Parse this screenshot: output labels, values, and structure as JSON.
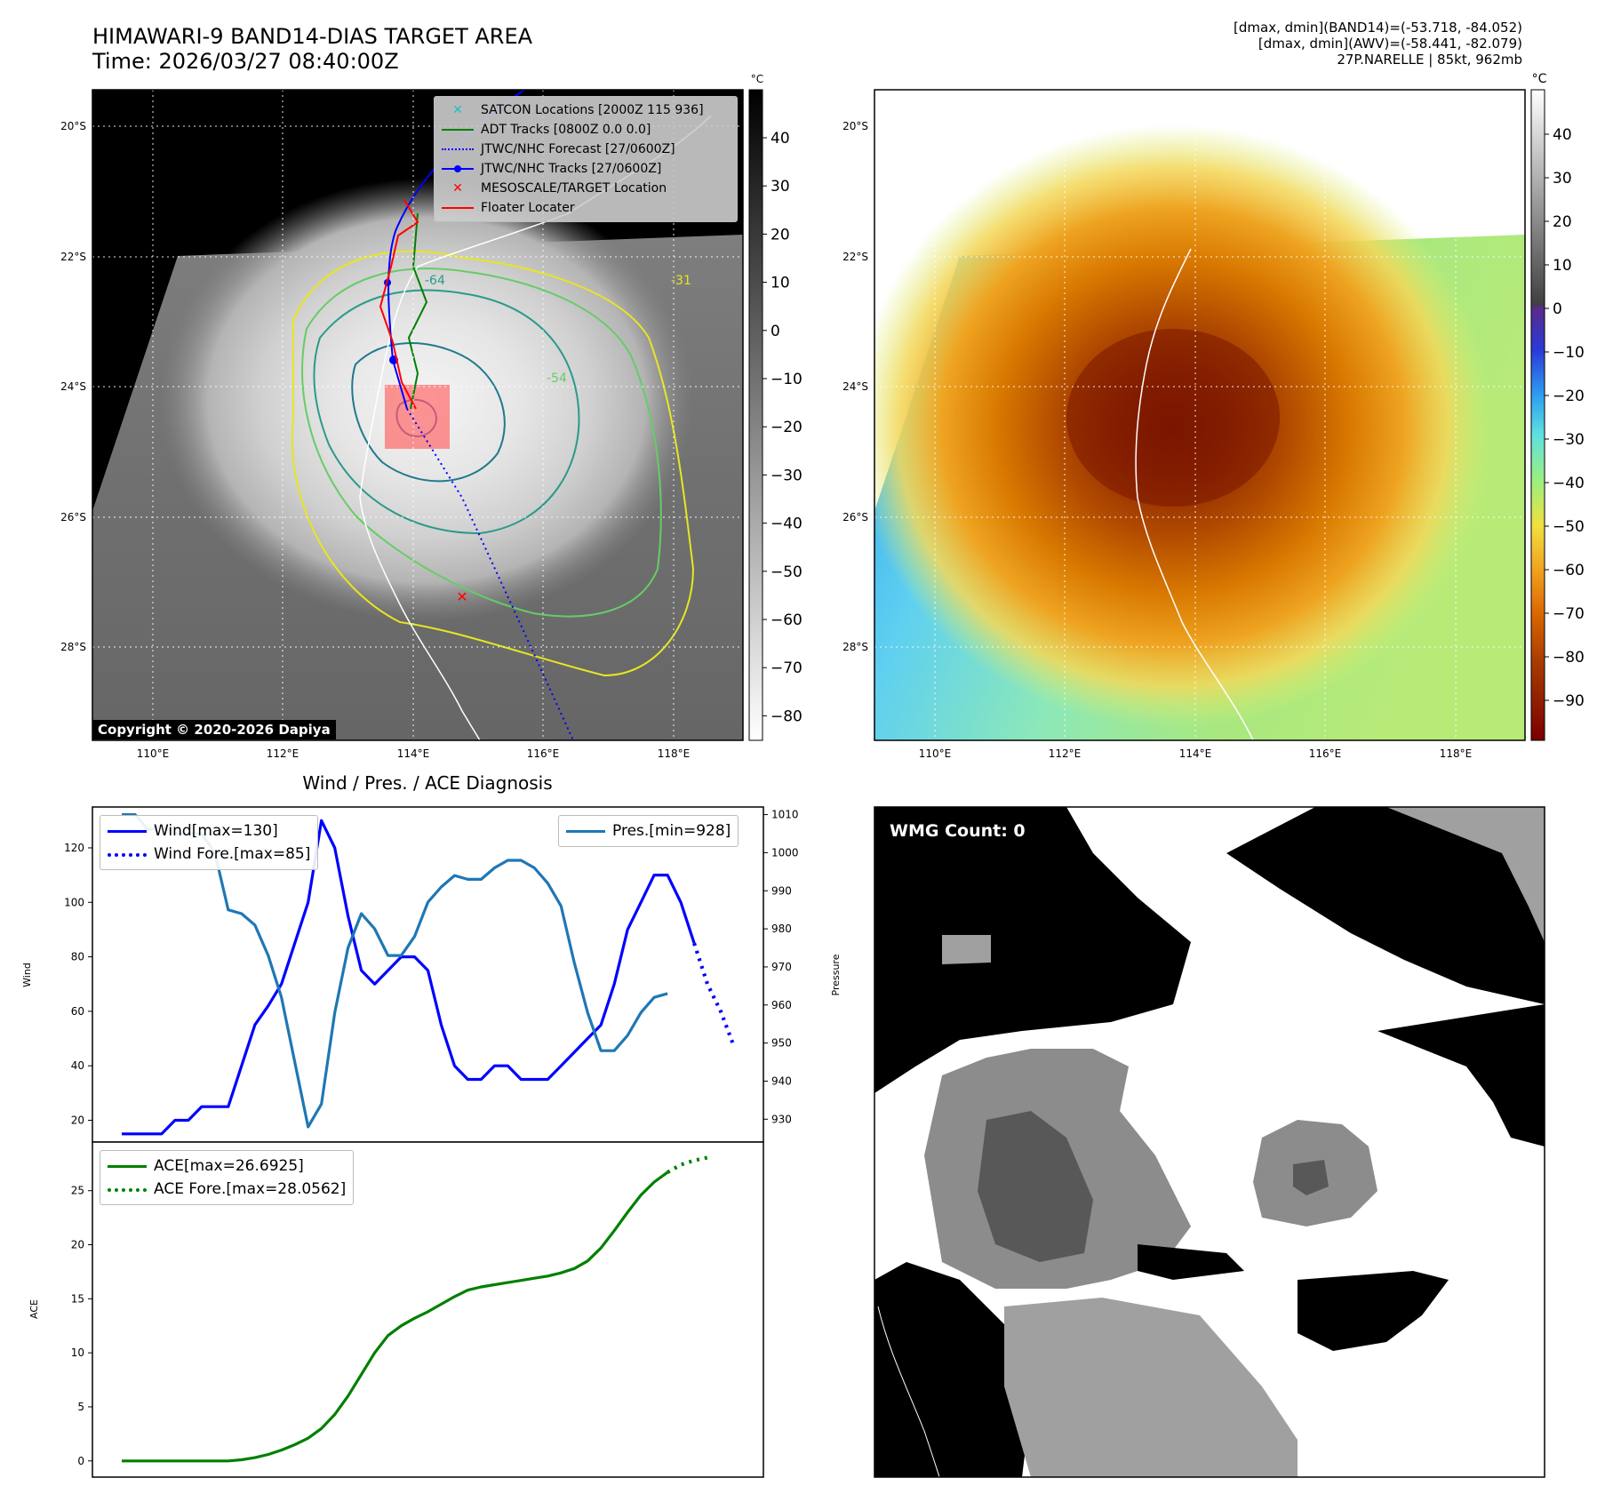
{
  "header": {
    "title_line1": "HIMAWARI-9 BAND14-DIAS TARGET AREA",
    "title_line2": "Time: 2026/03/27 08:40:00Z",
    "right_line1": "[dmax, dmin](BAND14)=(-53.718, -84.052)",
    "right_line2": "[dmax, dmin](AWV)=(-58.441, -82.079)",
    "right_line3": "27P.NARELLE | 85kt, 962mb"
  },
  "map_axes": {
    "lat_labels": [
      "20°S",
      "22°S",
      "24°S",
      "26°S",
      "28°S"
    ],
    "lon_labels": [
      "110°E",
      "112°E",
      "114°E",
      "116°E",
      "118°E"
    ]
  },
  "ir_panel": {
    "legend": [
      {
        "label": "SATCON Locations [2000Z 115 936]",
        "color": "#17becf"
      },
      {
        "label": "ADT Tracks [0800Z 0.0 0.0]",
        "color": "#008000"
      },
      {
        "label": "JTWC/NHC Forecast [27/0600Z]",
        "color": "#0000ff"
      },
      {
        "label": "JTWC/NHC Tracks [27/0600Z]",
        "color": "#0000ff"
      },
      {
        "label": "MESOSCALE/TARGET Location",
        "color": "#ff0000"
      },
      {
        "label": "Floater Locater",
        "color": "#ff0000"
      }
    ],
    "copyright": "Copyright © 2020-2026 Dapiya",
    "contour_labels": [
      "-64",
      "-54",
      "-31"
    ],
    "colorbar_unit": "°C",
    "colorbar_ticks": [
      "40",
      "30",
      "20",
      "10",
      "0",
      "−10",
      "−20",
      "−30",
      "−40",
      "−50",
      "−60",
      "−70",
      "−80"
    ]
  },
  "color_panel": {
    "colorbar_unit": "°C",
    "colorbar_ticks": [
      "40",
      "30",
      "20",
      "10",
      "0",
      "−10",
      "−20",
      "−30",
      "−40",
      "−50",
      "−60",
      "−70",
      "−80",
      "−90"
    ]
  },
  "wmg_panel": {
    "badge": "WMG Count: 0"
  },
  "chart_data": [
    {
      "type": "line",
      "title": "Wind / Pres. / ACE Diagnosis",
      "ylabel": "Wind",
      "y2label": "Pressure",
      "ylim": [
        12,
        135
      ],
      "y2lim": [
        924,
        1012
      ],
      "yticks": [
        20,
        40,
        60,
        80,
        100,
        120
      ],
      "y2ticks": [
        930,
        940,
        950,
        960,
        970,
        980,
        990,
        1000,
        1010
      ],
      "series": [
        {
          "name": "Wind[max=130]",
          "color": "#0000ff",
          "style": "solid",
          "axis": "left",
          "values": [
            15,
            15,
            15,
            15,
            20,
            20,
            25,
            25,
            25,
            40,
            55,
            62,
            70,
            85,
            100,
            130,
            120,
            95,
            75,
            70,
            75,
            80,
            80,
            75,
            55,
            40,
            35,
            35,
            40,
            40,
            35,
            35,
            35,
            40,
            45,
            50,
            55,
            70,
            90,
            100,
            110,
            110,
            100,
            85
          ]
        },
        {
          "name": "Wind Fore.[max=85]",
          "color": "#0000ff",
          "style": "dotted",
          "axis": "left",
          "values": [
            85,
            70,
            60,
            47
          ]
        },
        {
          "name": "Pres.[min=928]",
          "color": "#1f77b4",
          "style": "solid",
          "axis": "right",
          "values": [
            1010,
            1010,
            1006,
            1007,
            1005,
            1005,
            1005,
            1000,
            985,
            984,
            981,
            973,
            962,
            945,
            928,
            934,
            958,
            975,
            984,
            980,
            973,
            973,
            978,
            987,
            991,
            994,
            993,
            993,
            996,
            998,
            998,
            996,
            992,
            986,
            971,
            958,
            948,
            948,
            952,
            958,
            962,
            963
          ]
        }
      ]
    },
    {
      "type": "line",
      "ylabel": "ACE",
      "ylim": [
        -1.5,
        29.5
      ],
      "yticks": [
        0,
        5,
        10,
        15,
        20,
        25
      ],
      "series": [
        {
          "name": "ACE[max=26.6925]",
          "color": "#008000",
          "style": "solid",
          "values": [
            0,
            0,
            0,
            0,
            0,
            0,
            0,
            0,
            0,
            0.1,
            0.3,
            0.6,
            1,
            1.5,
            2.1,
            3,
            4.3,
            6,
            8,
            10,
            11.6,
            12.5,
            13.2,
            13.8,
            14.5,
            15.2,
            15.8,
            16.1,
            16.3,
            16.5,
            16.7,
            16.9,
            17.1,
            17.4,
            17.8,
            18.5,
            19.7,
            21.3,
            23,
            24.6,
            25.8,
            26.7
          ]
        },
        {
          "name": "ACE Fore.[max=28.0562]",
          "color": "#008000",
          "style": "dotted",
          "values": [
            26.7,
            27.4,
            27.8,
            28.06
          ]
        }
      ]
    }
  ]
}
